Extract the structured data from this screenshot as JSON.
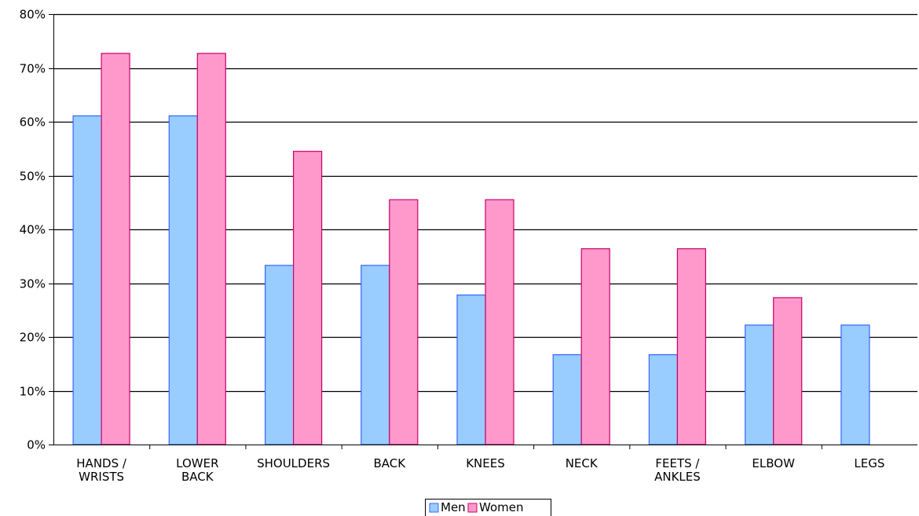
{
  "chart_data": {
    "type": "bar",
    "categories": [
      [
        "HANDS /",
        "WRISTS"
      ],
      [
        "LOWER",
        "BACK"
      ],
      [
        "SHOULDERS"
      ],
      [
        "BACK"
      ],
      [
        "KNEES"
      ],
      [
        "NECK"
      ],
      [
        "FEETS /",
        "ANKLES"
      ],
      [
        "ELBOW"
      ],
      [
        "LEGS"
      ]
    ],
    "series": [
      {
        "name": "Men",
        "color": "#99ccff",
        "stroke": "#3366ff",
        "values": [
          0.611,
          0.611,
          0.333,
          0.333,
          0.278,
          0.167,
          0.167,
          0.222,
          0.222
        ]
      },
      {
        "name": "Women",
        "color": "#ff99cc",
        "stroke": "#cc0066",
        "values": [
          0.727,
          0.727,
          0.545,
          0.455,
          0.455,
          0.364,
          0.364,
          0.273,
          0
        ]
      }
    ],
    "ylim": [
      0,
      0.8
    ],
    "yticks": [
      0,
      0.1,
      0.2,
      0.3,
      0.4,
      0.5,
      0.6,
      0.7,
      0.8
    ],
    "ytick_labels": [
      "0%",
      "10%",
      "20%",
      "30%",
      "40%",
      "50%",
      "60%",
      "70%",
      "80%"
    ],
    "grid": true,
    "legend": "bottom-center",
    "title": "",
    "xlabel": "",
    "ylabel": ""
  }
}
